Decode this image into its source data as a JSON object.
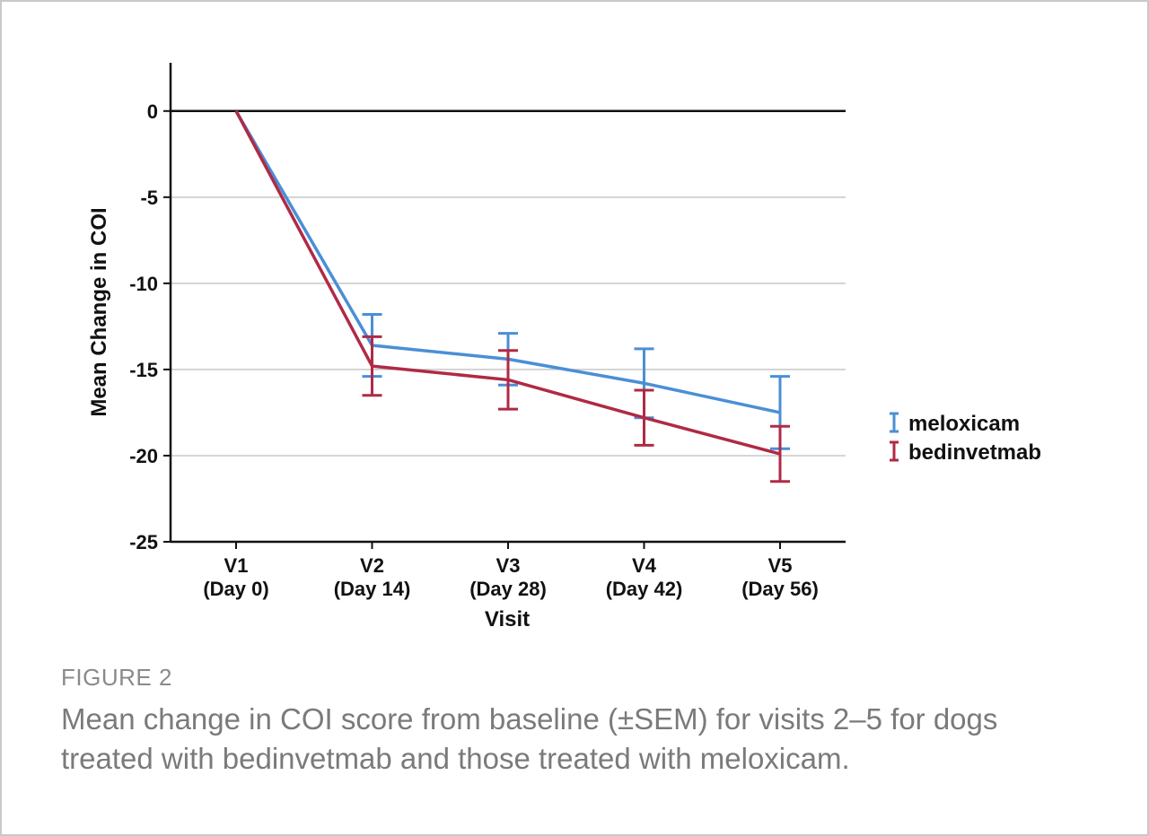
{
  "figure": {
    "label": "FIGURE 2",
    "caption": "Mean change in COI score from baseline (±SEM) for visits 2–5 for dogs treated with bedinvetmab and those treated with meloxicam."
  },
  "chart_data": {
    "type": "line",
    "title": "",
    "xlabel": "Visit",
    "ylabel": "Mean Change in COI",
    "categories": [
      {
        "line1": "V1",
        "line2": "(Day 0)"
      },
      {
        "line1": "V2",
        "line2": "(Day 14)"
      },
      {
        "line1": "V3",
        "line2": "(Day 28)"
      },
      {
        "line1": "V4",
        "line2": "(Day 42)"
      },
      {
        "line1": "V5",
        "line2": "(Day 56)"
      }
    ],
    "ylim": [
      -25,
      2.8
    ],
    "yticks": [
      0,
      -5,
      -10,
      -15,
      -20,
      -25
    ],
    "ytick_labels": [
      "0",
      "-5",
      "-10",
      "-15",
      "-20",
      "-25"
    ],
    "grid": "horizontal",
    "legend_position": "right",
    "error_bars": "±SEM",
    "series": [
      {
        "name": "meloxicam",
        "color": "#4a8fd6",
        "values": [
          0,
          -13.6,
          -14.4,
          -15.8,
          -17.5
        ],
        "sem": [
          0,
          1.8,
          1.5,
          2.0,
          2.1
        ]
      },
      {
        "name": "bedinvetmab",
        "color": "#b02a45",
        "values": [
          0,
          -14.8,
          -15.6,
          -17.8,
          -19.9
        ],
        "sem": [
          0,
          1.7,
          1.7,
          1.6,
          1.6
        ]
      }
    ]
  }
}
